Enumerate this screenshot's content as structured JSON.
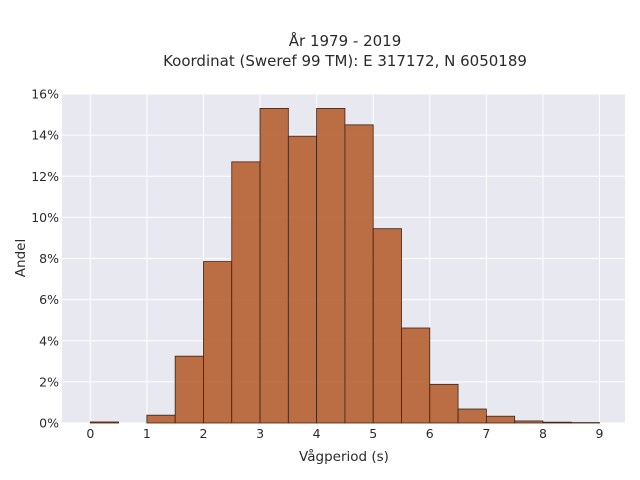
{
  "chart_data": {
    "type": "bar",
    "title": "År 1979 - 2019",
    "subtitle": "Koordinat (Sweref 99 TM): E 317172, N 6050189",
    "xlabel": "Vågperiod (s)",
    "ylabel": "Andel",
    "bin_width": 0.5,
    "bins": [
      {
        "x0": 0.0,
        "x1": 0.5,
        "value": 0.05
      },
      {
        "x0": 0.5,
        "x1": 1.0,
        "value": 0.0
      },
      {
        "x0": 1.0,
        "x1": 1.5,
        "value": 0.38
      },
      {
        "x0": 1.5,
        "x1": 2.0,
        "value": 3.25
      },
      {
        "x0": 2.0,
        "x1": 2.5,
        "value": 7.85
      },
      {
        "x0": 2.5,
        "x1": 3.0,
        "value": 12.7
      },
      {
        "x0": 3.0,
        "x1": 3.5,
        "value": 15.3
      },
      {
        "x0": 3.5,
        "x1": 4.0,
        "value": 13.95
      },
      {
        "x0": 4.0,
        "x1": 4.5,
        "value": 15.3
      },
      {
        "x0": 4.5,
        "x1": 5.0,
        "value": 14.5
      },
      {
        "x0": 5.0,
        "x1": 5.5,
        "value": 9.45
      },
      {
        "x0": 5.5,
        "x1": 6.0,
        "value": 4.62
      },
      {
        "x0": 6.0,
        "x1": 6.5,
        "value": 1.88
      },
      {
        "x0": 6.5,
        "x1": 7.0,
        "value": 0.68
      },
      {
        "x0": 7.0,
        "x1": 7.5,
        "value": 0.33
      },
      {
        "x0": 7.5,
        "x1": 8.0,
        "value": 0.1
      },
      {
        "x0": 8.0,
        "x1": 8.5,
        "value": 0.04
      },
      {
        "x0": 8.5,
        "x1": 9.0,
        "value": 0.02
      }
    ],
    "xlim": [
      -0.5,
      9.45
    ],
    "ylim": [
      0,
      16
    ],
    "xticks": [
      0,
      1,
      2,
      3,
      4,
      5,
      6,
      7,
      8,
      9
    ],
    "xtick_labels": [
      "0",
      "1",
      "2",
      "3",
      "4",
      "5",
      "6",
      "7",
      "8",
      "9"
    ],
    "yticks": [
      0,
      2,
      4,
      6,
      8,
      10,
      12,
      14,
      16
    ],
    "ytick_labels": [
      "0%",
      "2%",
      "4%",
      "6%",
      "8%",
      "10%",
      "12%",
      "14%",
      "16%"
    ],
    "grid": true,
    "colors": {
      "bar_fill": "#b8663a",
      "bar_stroke": "#3d2215",
      "plot_background": "#e8e8f0",
      "grid": "#ffffff",
      "text": "#2a2a2a"
    }
  }
}
